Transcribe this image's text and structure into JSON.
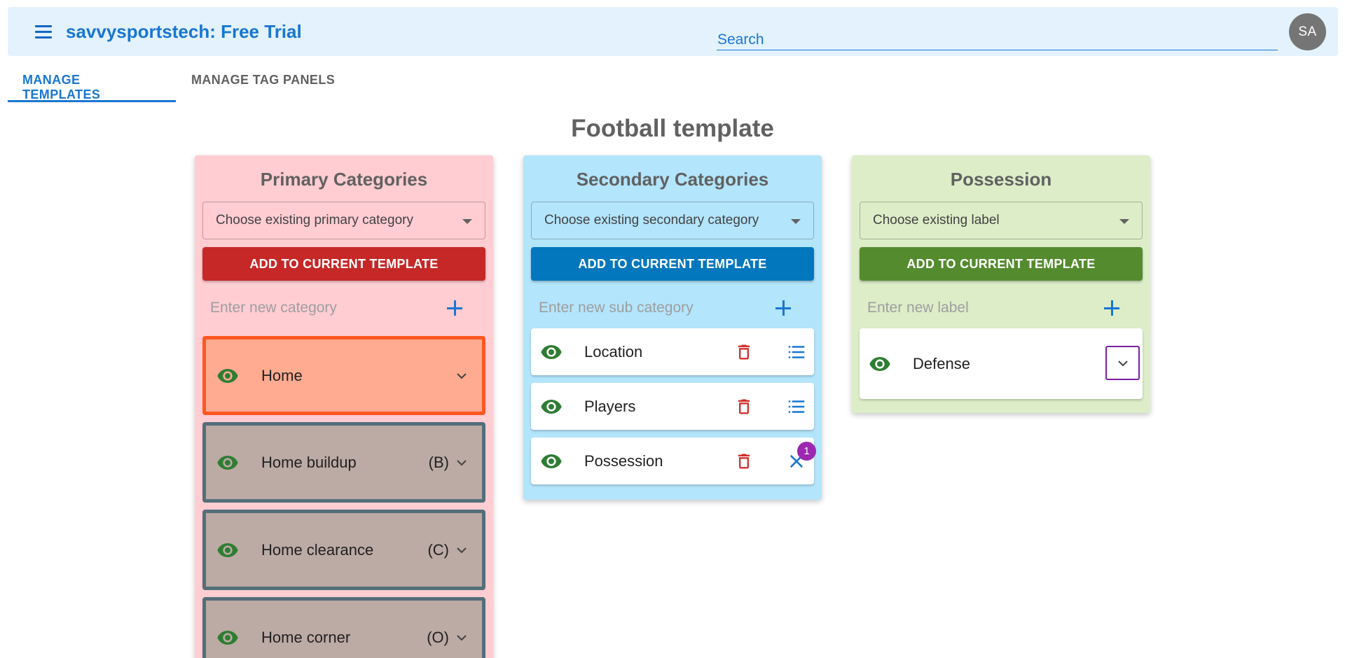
{
  "header": {
    "title": "savvysportstech: Free Trial",
    "search_placeholder": "Search",
    "avatar_initials": "SA"
  },
  "tabs": [
    {
      "label": "MANAGE TEMPLATES",
      "active": true
    },
    {
      "label": "MANAGE TAG PANELS",
      "active": false
    }
  ],
  "page_title": "Football template",
  "primary": {
    "title": "Primary Categories",
    "select_value": "Choose existing primary category",
    "add_label": "ADD TO CURRENT TEMPLATE",
    "new_placeholder": "Enter new category",
    "items": [
      {
        "label": "Home",
        "shortcut": ""
      },
      {
        "label": "Home buildup",
        "shortcut": "(B)"
      },
      {
        "label": "Home clearance",
        "shortcut": "(C)"
      },
      {
        "label": "Home corner",
        "shortcut": "(O)"
      }
    ]
  },
  "secondary": {
    "title": "Secondary Categories",
    "select_value": "Choose existing secondary category",
    "add_label": "ADD TO CURRENT TEMPLATE",
    "new_placeholder": "Enter new sub category",
    "items": [
      {
        "label": "Location"
      },
      {
        "label": "Players"
      },
      {
        "label": "Possession",
        "badge": "1"
      }
    ]
  },
  "possession": {
    "title": "Possession",
    "select_value": "Choose existing label",
    "add_label": "ADD TO CURRENT TEMPLATE",
    "new_placeholder": "Enter new label",
    "items": [
      {
        "label": "Defense"
      }
    ]
  },
  "icons": {
    "menu": "menu-icon",
    "eye": "eye-icon",
    "trash": "trash-icon",
    "list": "list-icon",
    "close": "close-icon",
    "plus": "plus-icon",
    "chevron": "chevron-down-icon",
    "caret": "dropdown-caret-icon"
  },
  "colors": {
    "accent_blue": "#1976d2",
    "primary_bg": "#ffcdd2",
    "secondary_bg": "#b3e5fc",
    "possession_bg": "#dcedc8",
    "red_button": "#c62828",
    "blue_button": "#0277bd",
    "green_button": "#558b2f",
    "active_card_border": "#ff5722",
    "eye_green": "#2e7d32",
    "trash_red": "#d32f2f",
    "badge_purple": "#9c27b0"
  }
}
